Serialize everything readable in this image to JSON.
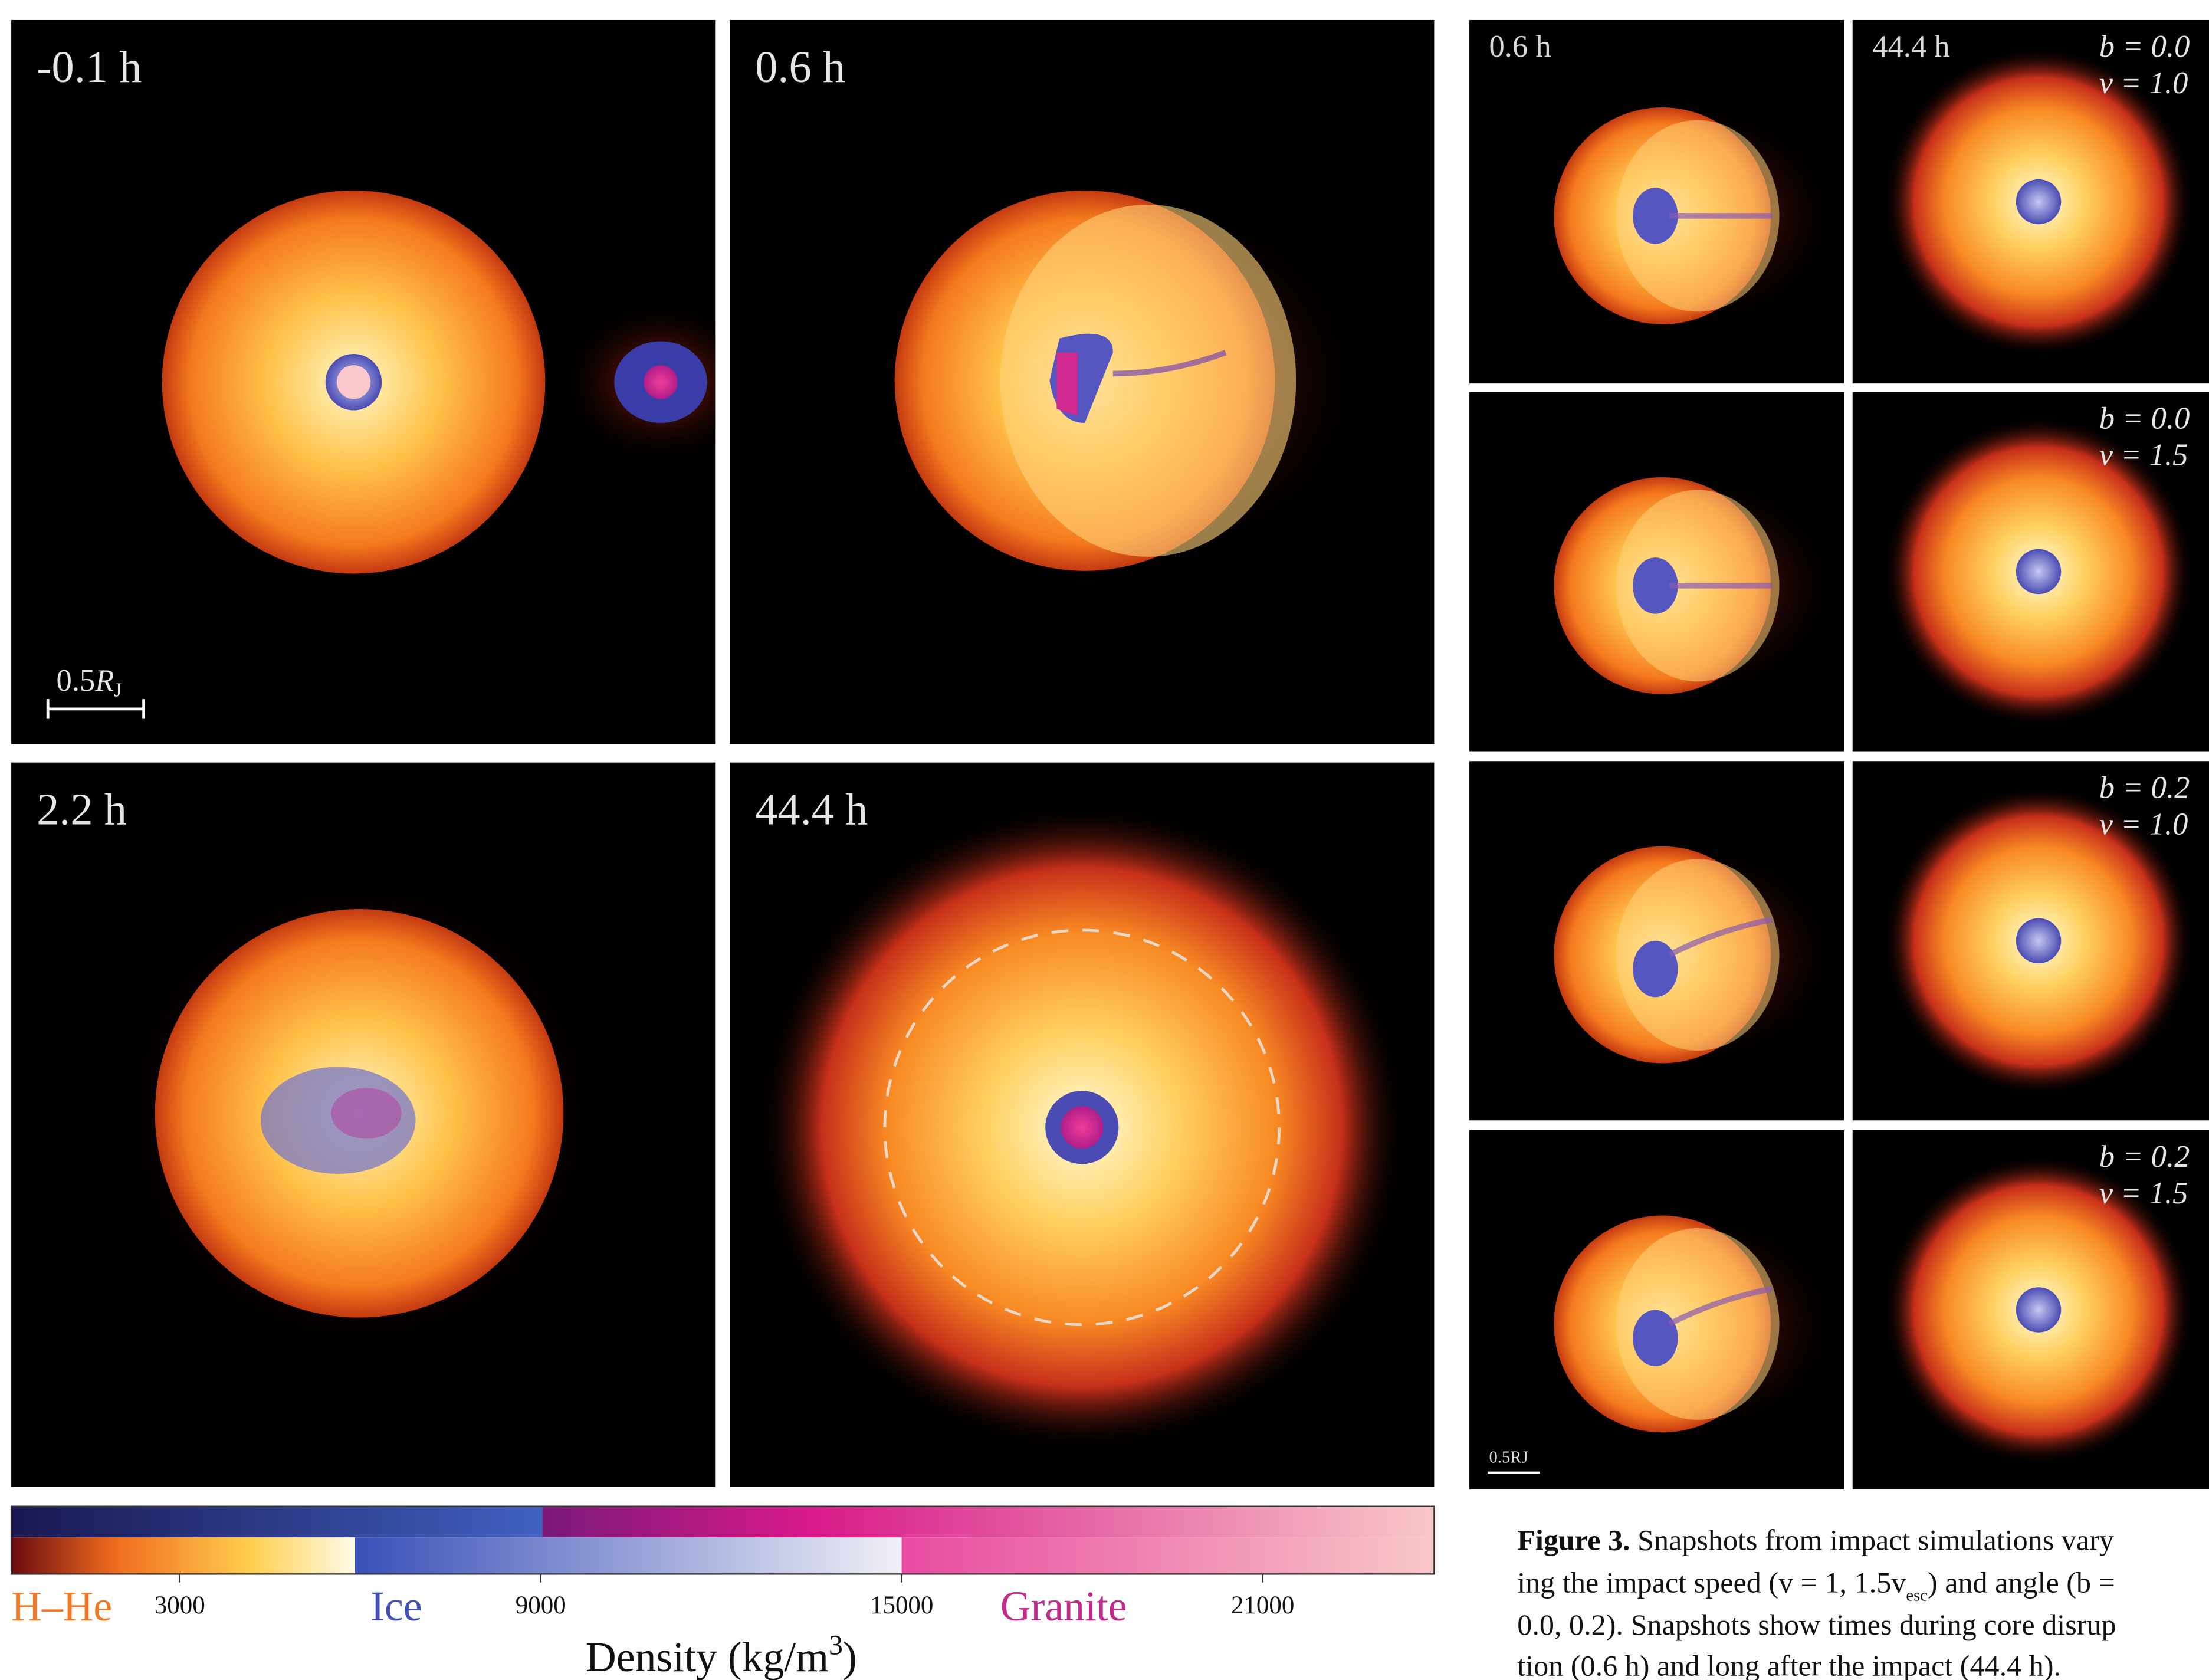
{
  "panels": [
    {
      "time": "-0.1 h"
    },
    {
      "time": "0.6 h"
    },
    {
      "time": "2.2 h"
    },
    {
      "time": "44.4 h"
    }
  ],
  "scale_bar": {
    "value": "0.5",
    "symbol": "R",
    "subscript": "J"
  },
  "grid": {
    "column_headers": [
      "0.6 h",
      "44.4 h"
    ],
    "rows": [
      {
        "b": "b = 0.0",
        "v": "v = 1.0"
      },
      {
        "b": "b = 0.0",
        "v": "v = 1.5"
      },
      {
        "b": "b = 0.2",
        "v": "v = 1.0"
      },
      {
        "b": "b = 0.2",
        "v": "v = 1.5"
      }
    ],
    "scale_bar": {
      "value": "0.5",
      "symbol": "R",
      "subscript": "J"
    }
  },
  "colorbar": {
    "materials": [
      "H–He",
      "Ice",
      "Granite"
    ],
    "range": [
      200,
      23850
    ],
    "ticks": [
      3000,
      9000,
      15000,
      21000
    ],
    "label": {
      "text": "Density (kg/m",
      "superscript": "3",
      "close": ")"
    }
  },
  "caption": {
    "label": "Figure 3.",
    "line_1": "Snapshots from impact simulations vary",
    "line_2": {
      "before": "ing the impact speed (v = 1, 1.5v",
      "subscript": "esc",
      "after": ") and angle (b ="
    },
    "line_3": "0.0, 0.2). Snapshots show times during core disrup",
    "line_4": "tion (0.6 h) and long after the impact (44.4 h)."
  }
}
